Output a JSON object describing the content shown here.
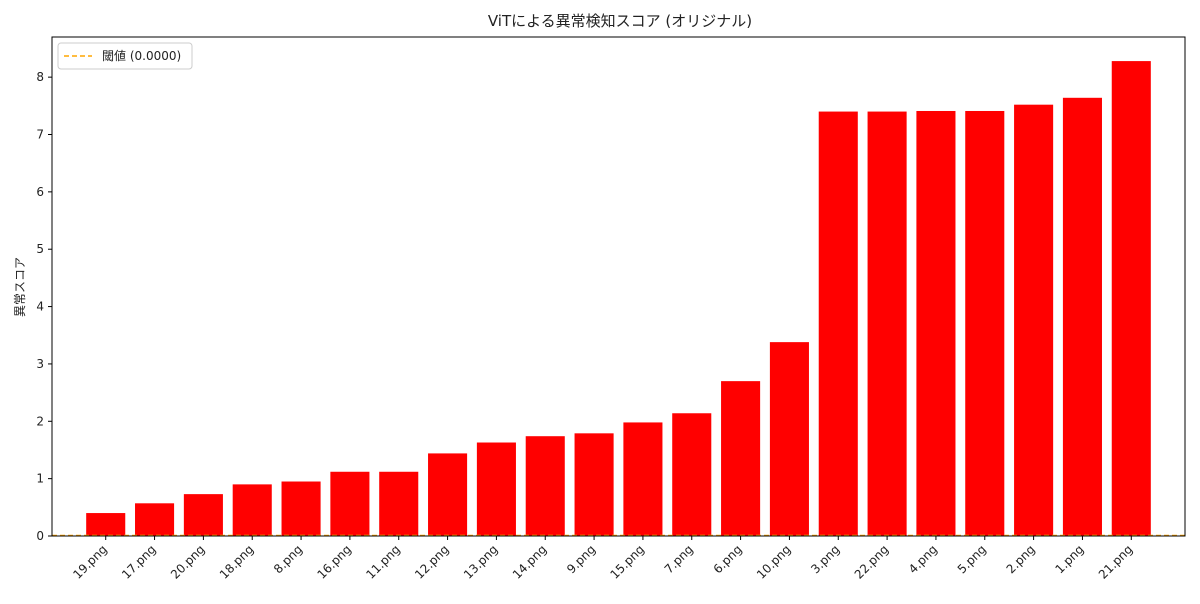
{
  "chart_data": {
    "type": "bar",
    "title": "ViTによる異常検知スコア (オリジナル)",
    "xlabel": "",
    "ylabel": "異常スコア",
    "categories": [
      "19.png",
      "17.png",
      "20.png",
      "18.png",
      "8.png",
      "16.png",
      "11.png",
      "12.png",
      "13.png",
      "14.png",
      "9.png",
      "15.png",
      "7.png",
      "6.png",
      "10.png",
      "3.png",
      "22.png",
      "4.png",
      "5.png",
      "2.png",
      "1.png",
      "21.png"
    ],
    "values": [
      0.4,
      0.57,
      0.73,
      0.9,
      0.95,
      1.12,
      1.12,
      1.44,
      1.63,
      1.74,
      1.79,
      1.98,
      2.14,
      2.7,
      3.38,
      7.4,
      7.4,
      7.41,
      7.41,
      7.52,
      7.64,
      8.28
    ],
    "ylim": [
      0,
      8.7
    ],
    "yticks": [
      0,
      1,
      2,
      3,
      4,
      5,
      6,
      7,
      8
    ],
    "threshold": {
      "value": 0.0,
      "label": "閾値 (0.0000)"
    },
    "legend_position": "top-left",
    "grid": false,
    "colors": {
      "bar": "#ff0000",
      "threshold": "#ffa500",
      "axis": "#000000"
    }
  }
}
